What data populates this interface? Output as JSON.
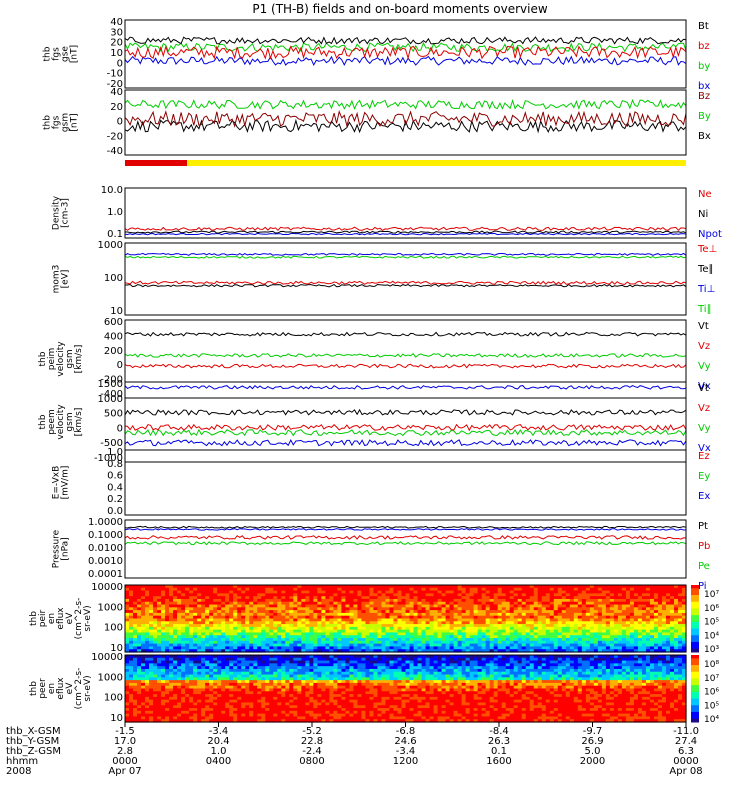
{
  "title": "P1 (TH-B) fields and on-board moments overview",
  "chart_data": [
    {
      "type": "line",
      "ylabel": [
        "thb",
        "fgs",
        "gse",
        "[nT]"
      ],
      "ylim": [
        -40,
        40
      ],
      "yticks": [
        "40",
        "30",
        "20",
        "10",
        "0",
        "-10",
        "-20"
      ],
      "legend": [
        {
          "label": "Bt",
          "color": "#000000"
        },
        {
          "label": "bz",
          "color": "#e00000"
        },
        {
          "label": "by",
          "color": "#00cc00"
        },
        {
          "label": "bx",
          "color": "#0000e0"
        }
      ],
      "series": [
        {
          "color": "#0000e0",
          "base": -8,
          "noise": 5
        },
        {
          "color": "#00cc00",
          "base": 8,
          "noise": 5
        },
        {
          "color": "#e00000",
          "base": 2,
          "noise": 7
        },
        {
          "color": "#000000",
          "base": 16,
          "noise": 4
        }
      ]
    },
    {
      "type": "line",
      "ylabel": [
        "thb",
        "fgs",
        "gsm",
        "[nT]"
      ],
      "ylim": [
        -50,
        40
      ],
      "yticks": [
        "40",
        "20",
        "0",
        "-20",
        "-40"
      ],
      "legend": [
        {
          "label": "Bz",
          "color": "#8b0000"
        },
        {
          "label": "By",
          "color": "#00cc00"
        },
        {
          "label": "Bx",
          "color": "#000000"
        }
      ],
      "series": [
        {
          "color": "#000000",
          "base": -10,
          "noise": 8
        },
        {
          "color": "#00cc00",
          "base": 20,
          "noise": 6
        },
        {
          "color": "#8b0000",
          "base": 0,
          "noise": 10
        }
      ]
    },
    {
      "type": "line",
      "ylabel": [
        "Density",
        "[cm-3]"
      ],
      "ylim": [
        0.1,
        10
      ],
      "scale": "log",
      "yticks": [
        "10.0",
        "1.0",
        "0.1"
      ],
      "legend": [
        {
          "label": "Ne",
          "color": "#e00000"
        },
        {
          "label": "Ni",
          "color": "#000000"
        },
        {
          "label": "Npot",
          "color": "#0000e0"
        }
      ],
      "series": [
        {
          "color": "#0000e0",
          "base": 0.3,
          "noise": 0.05
        },
        {
          "color": "#000000",
          "base": 0.45,
          "noise": 0.08
        },
        {
          "color": "#e00000",
          "base": 0.7,
          "noise": 0.12
        }
      ]
    },
    {
      "type": "line",
      "ylabel": [
        "mom3",
        "[eV]"
      ],
      "ylim": [
        10,
        4000
      ],
      "scale": "log",
      "yticks": [
        "1000",
        "100",
        "10"
      ],
      "legend": [
        {
          "label": "Te⊥",
          "color": "#e00000"
        },
        {
          "label": "Te∥",
          "color": "#000000"
        },
        {
          "label": "Ti⊥",
          "color": "#0000e0"
        },
        {
          "label": "Ti∥",
          "color": "#00cc00"
        }
      ],
      "series": [
        {
          "color": "#00cc00",
          "base": 3.05,
          "noise": 0.05
        },
        {
          "color": "#0000e0",
          "base": 3.2,
          "noise": 0.05
        },
        {
          "color": "#000000",
          "base": 1.55,
          "noise": 0.06
        },
        {
          "color": "#e00000",
          "base": 1.7,
          "noise": 0.08
        }
      ]
    },
    {
      "type": "line",
      "ylabel": [
        "thb",
        "peim",
        "velocity",
        "gsm",
        "[km/s]"
      ],
      "ylim": [
        -500,
        600
      ],
      "yticks": [
        "600",
        "400",
        "200",
        "0",
        "-200",
        "-400"
      ],
      "legend": [
        {
          "label": "Vt",
          "color": "#000000"
        },
        {
          "label": "Vz",
          "color": "#e00000"
        },
        {
          "label": "Vy",
          "color": "#00cc00"
        },
        {
          "label": "Vx",
          "color": "#0000e0"
        }
      ],
      "series": [
        {
          "color": "#0000e0",
          "base": -350,
          "noise": 25
        },
        {
          "color": "#e00000",
          "base": -50,
          "noise": 25
        },
        {
          "color": "#00cc00",
          "base": 100,
          "noise": 25
        },
        {
          "color": "#000000",
          "base": 400,
          "noise": 25
        }
      ]
    },
    {
      "type": "line",
      "ylabel": [
        "thb",
        "peem",
        "velocity",
        "gsm",
        "[km/s]"
      ],
      "ylim": [
        -1000,
        1500
      ],
      "yticks": [
        "1500",
        "1000",
        "500",
        "0",
        "-500",
        "-1000"
      ],
      "legend": [
        {
          "label": "Vt",
          "color": "#000000"
        },
        {
          "label": "Vz",
          "color": "#e00000"
        },
        {
          "label": "Vy",
          "color": "#00cc00"
        },
        {
          "label": "Vx",
          "color": "#0000e0"
        }
      ],
      "series": [
        {
          "color": "#0000e0",
          "base": -400,
          "noise": 90
        },
        {
          "color": "#00cc00",
          "base": -80,
          "noise": 90
        },
        {
          "color": "#e00000",
          "base": 80,
          "noise": 90
        },
        {
          "color": "#000000",
          "base": 550,
          "noise": 80
        }
      ]
    },
    {
      "type": "line",
      "ylabel": [
        "E=-VxB",
        "[mV/m]"
      ],
      "ylim": [
        0,
        1
      ],
      "yticks": [
        "1.0",
        "0.8",
        "0.6",
        "0.4",
        "0.2",
        "0.0"
      ],
      "legend": [
        {
          "label": "Ez",
          "color": "#e00000"
        },
        {
          "label": "Ey",
          "color": "#00cc00"
        },
        {
          "label": "Ex",
          "color": "#0000e0"
        }
      ],
      "series": []
    },
    {
      "type": "line",
      "ylabel": [
        "Pressure",
        "[nPa]"
      ],
      "ylim": [
        0.0001,
        1
      ],
      "scale": "log",
      "yticks": [
        "1.0000",
        "0.1000",
        "0.0100",
        "0.0010",
        "0.0001"
      ],
      "legend": [
        {
          "label": "Pt",
          "color": "#000000"
        },
        {
          "label": "Pb",
          "color": "#e00000"
        },
        {
          "label": "Pe",
          "color": "#00cc00"
        },
        {
          "label": "Pi",
          "color": "#0000e0"
        }
      ],
      "series": [
        {
          "color": "#00cc00",
          "base": -1.6,
          "noise": 0.1
        },
        {
          "color": "#e00000",
          "base": -1.2,
          "noise": 0.12
        },
        {
          "color": "#0000e0",
          "base": -0.65,
          "noise": 0.05
        },
        {
          "color": "#000000",
          "base": -0.5,
          "noise": 0.06
        }
      ]
    },
    {
      "type": "heatmap",
      "ylabel": [
        "thb",
        "peir",
        "en",
        "eflux",
        "eV",
        "(cm^2-s-",
        "sr-eV)"
      ],
      "ylim": [
        10,
        10000
      ],
      "scale": "log",
      "yticks": [
        "10000",
        "1000",
        "100",
        "10"
      ],
      "colorbar_ticks": [
        "10⁷",
        "10⁶",
        "10⁵",
        "10⁴",
        "10³"
      ]
    },
    {
      "type": "heatmap",
      "ylabel": [
        "thb",
        "peer",
        "en",
        "eflux",
        "eV",
        "(cm^2-s-",
        "sr-eV)"
      ],
      "ylim": [
        10,
        10000
      ],
      "scale": "log",
      "yticks": [
        "10000",
        "1000",
        "100",
        "10"
      ],
      "colorbar_ticks": [
        "10⁸",
        "10⁷",
        "10⁶",
        "10⁵",
        "10⁴"
      ]
    }
  ],
  "x_axis": {
    "row_labels": [
      "thb_X-GSM",
      "thb_Y-GSM",
      "thb_Z-GSM",
      "hhmm",
      "2008"
    ],
    "ticks": [
      {
        "x": "-1.5",
        "y": "17.0",
        "z": "2.8",
        "hhmm": "0000",
        "date": "Apr 07"
      },
      {
        "x": "-3.4",
        "y": "20.4",
        "z": "1.0",
        "hhmm": "0400",
        "date": ""
      },
      {
        "x": "-5.2",
        "y": "22.8",
        "z": "-2.4",
        "hhmm": "0800",
        "date": ""
      },
      {
        "x": "-6.8",
        "y": "24.6",
        "z": "-3.4",
        "hhmm": "1200",
        "date": ""
      },
      {
        "x": "-8.4",
        "y": "26.3",
        "z": "0.1",
        "hhmm": "1600",
        "date": ""
      },
      {
        "x": "-9.7",
        "y": "26.9",
        "z": "5.0",
        "hhmm": "2000",
        "date": ""
      },
      {
        "x": "-11.0",
        "y": "27.4",
        "z": "6.3",
        "hhmm": "0000",
        "date": "Apr 08"
      }
    ]
  }
}
